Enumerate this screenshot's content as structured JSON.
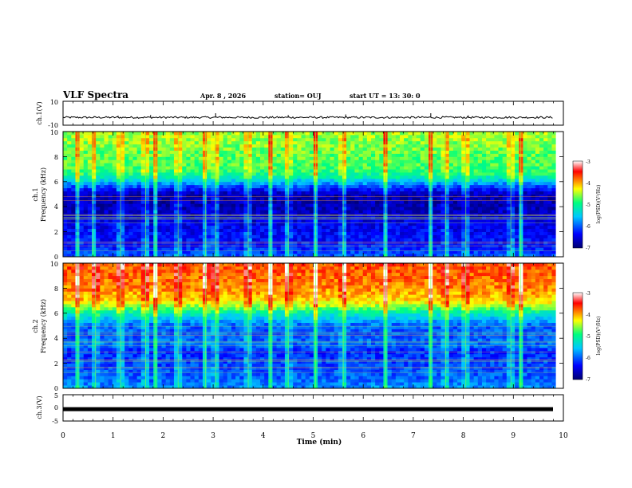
{
  "header": {
    "title": "VLF Spectra",
    "date": "Apr. 8 , 2026",
    "station": "station= OUJ",
    "start": "start  UT =   13: 30: 0"
  },
  "chart_data": [
    {
      "type": "line",
      "id": "ch1_waveform",
      "ylabel": "ch.1(V)",
      "ylim": [
        -10,
        10
      ],
      "yticks": [
        "10",
        "-10"
      ],
      "xlim": [
        0,
        10
      ],
      "baseline": -3.5,
      "spikes": [
        {
          "x": 1.1,
          "y": -2.0
        },
        {
          "x": 1.75,
          "y": -1.5
        },
        {
          "x": 3.05,
          "y": 0.0
        },
        {
          "x": 4.5,
          "y": -1.5
        },
        {
          "x": 5.65,
          "y": -1.0
        },
        {
          "x": 7.35,
          "y": 0.0
        },
        {
          "x": 8.1,
          "y": -1.8
        }
      ]
    },
    {
      "type": "heatmap",
      "id": "ch1_spectrogram",
      "ylabel": "ch.1 Frequency (kHz)",
      "ylabel_lines": [
        "ch.1",
        "Frequency  (kHz)"
      ],
      "ylim": [
        0,
        10
      ],
      "yticks": [
        "0",
        "2",
        "4",
        "6",
        "8",
        "10"
      ],
      "xlim": [
        0,
        9.85
      ],
      "colorbar": {
        "label": "log(PSD)(V²/Hz)",
        "range": [
          -7,
          -3
        ],
        "ticks": [
          "-3",
          "-4",
          "-5",
          "-6",
          "-7"
        ],
        "colors": [
          "#000070",
          "#0000ff",
          "#00c8ff",
          "#00ff7f",
          "#ffff00",
          "#ff0000",
          "#ffffff"
        ]
      },
      "band_profile": {
        "frequency_khz": [
          0,
          1,
          2,
          3,
          4,
          5,
          5.5,
          6,
          6.5,
          7,
          8,
          9,
          10
        ],
        "log_psd": [
          -6.0,
          -6.3,
          -6.4,
          -6.5,
          -6.7,
          -6.7,
          -6.2,
          -5.6,
          -5.0,
          -4.8,
          -4.7,
          -4.6,
          -4.5
        ]
      },
      "bursts_min": [
        0.3,
        0.6,
        1.15,
        1.65,
        1.85,
        2.3,
        2.85,
        3.05,
        3.7,
        4.15,
        4.5,
        5.05,
        5.6,
        6.45,
        7.35,
        7.65,
        8.05,
        8.95,
        9.15
      ]
    },
    {
      "type": "heatmap",
      "id": "ch2_spectrogram",
      "ylabel": "ch.2 Frequency (kHz)",
      "ylabel_lines": [
        "ch.2",
        "Frequency  (kHz)"
      ],
      "ylim": [
        0,
        10
      ],
      "yticks": [
        "0",
        "2",
        "4",
        "6",
        "8",
        "10"
      ],
      "xlim": [
        0,
        9.85
      ],
      "colorbar": {
        "label": "log(PSD)(V²/Hz)",
        "range": [
          -7,
          -3
        ],
        "ticks": [
          "-3",
          "-4",
          "-5",
          "-6",
          "-7"
        ],
        "colors": [
          "#000070",
          "#0000ff",
          "#00c8ff",
          "#00ff7f",
          "#ffff00",
          "#ff0000",
          "#ffffff"
        ]
      },
      "band_profile": {
        "frequency_khz": [
          0,
          1,
          2,
          3,
          3.5,
          4,
          5,
          5.5,
          6,
          6.5,
          7,
          8,
          9,
          10
        ],
        "log_psd": [
          -5.8,
          -6.0,
          -6.1,
          -6.2,
          -5.9,
          -6.0,
          -6.0,
          -5.6,
          -5.2,
          -4.6,
          -4.2,
          -3.9,
          -3.8,
          -3.7
        ]
      },
      "bursts_min": [
        0.3,
        0.65,
        1.15,
        1.65,
        1.85,
        2.3,
        2.85,
        3.05,
        3.7,
        4.15,
        4.5,
        5.05,
        5.6,
        6.45,
        7.35,
        7.65,
        8.05,
        8.95,
        9.15
      ]
    },
    {
      "type": "line",
      "id": "ch3_waveform",
      "ylabel": "ch.3(V)",
      "ylim": [
        -5,
        5
      ],
      "yticks": [
        "5",
        "0",
        "-5"
      ],
      "xlim": [
        0,
        10
      ],
      "baseline": -0.5
    }
  ],
  "xaxis": {
    "label": "Time  (min)",
    "ticks": [
      "0",
      "1",
      "2",
      "3",
      "4",
      "5",
      "6",
      "7",
      "8",
      "9",
      "10"
    ]
  }
}
